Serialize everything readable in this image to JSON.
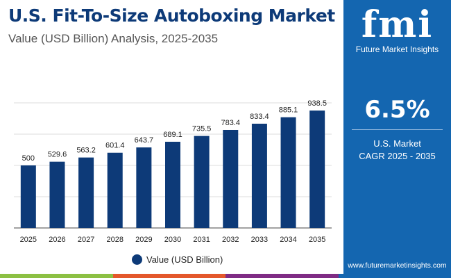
{
  "chart_data": {
    "type": "bar",
    "title": "U.S. Fit-To-Size Autoboxing Market",
    "subtitle": "Value (USD Billion) Analysis, 2025-2035",
    "categories": [
      "2025",
      "2026",
      "2027",
      "2028",
      "2029",
      "2030",
      "2031",
      "2032",
      "2033",
      "2034",
      "2035"
    ],
    "series": [
      {
        "name": "Value (USD Billion)",
        "values": [
          500,
          529.6,
          563.2,
          601.4,
          643.7,
          689.1,
          735.5,
          783.4,
          833.4,
          885.1,
          938.5
        ],
        "color": "#0d3a78"
      }
    ],
    "data_labels": [
      "500",
      "529.6",
      "563.2",
      "601.4",
      "643.7",
      "689.1",
      "735.5",
      "783.4",
      "833.4",
      "885.1",
      "938.5"
    ],
    "ylim": [
      0,
      1000
    ],
    "grid": true,
    "legend": "bottom"
  },
  "panel": {
    "logo_text": "fmi",
    "logo_name": "Future Market Insights",
    "cagr_value": "6.5%",
    "cagr_label_1": "U.S. Market",
    "cagr_label_2": "CAGR 2025 - 2035",
    "url": "www.futuremarketinsights.com"
  },
  "stripe_colors": [
    "#8cc043",
    "#e4582b",
    "#7f2b84",
    "#1466b0"
  ]
}
